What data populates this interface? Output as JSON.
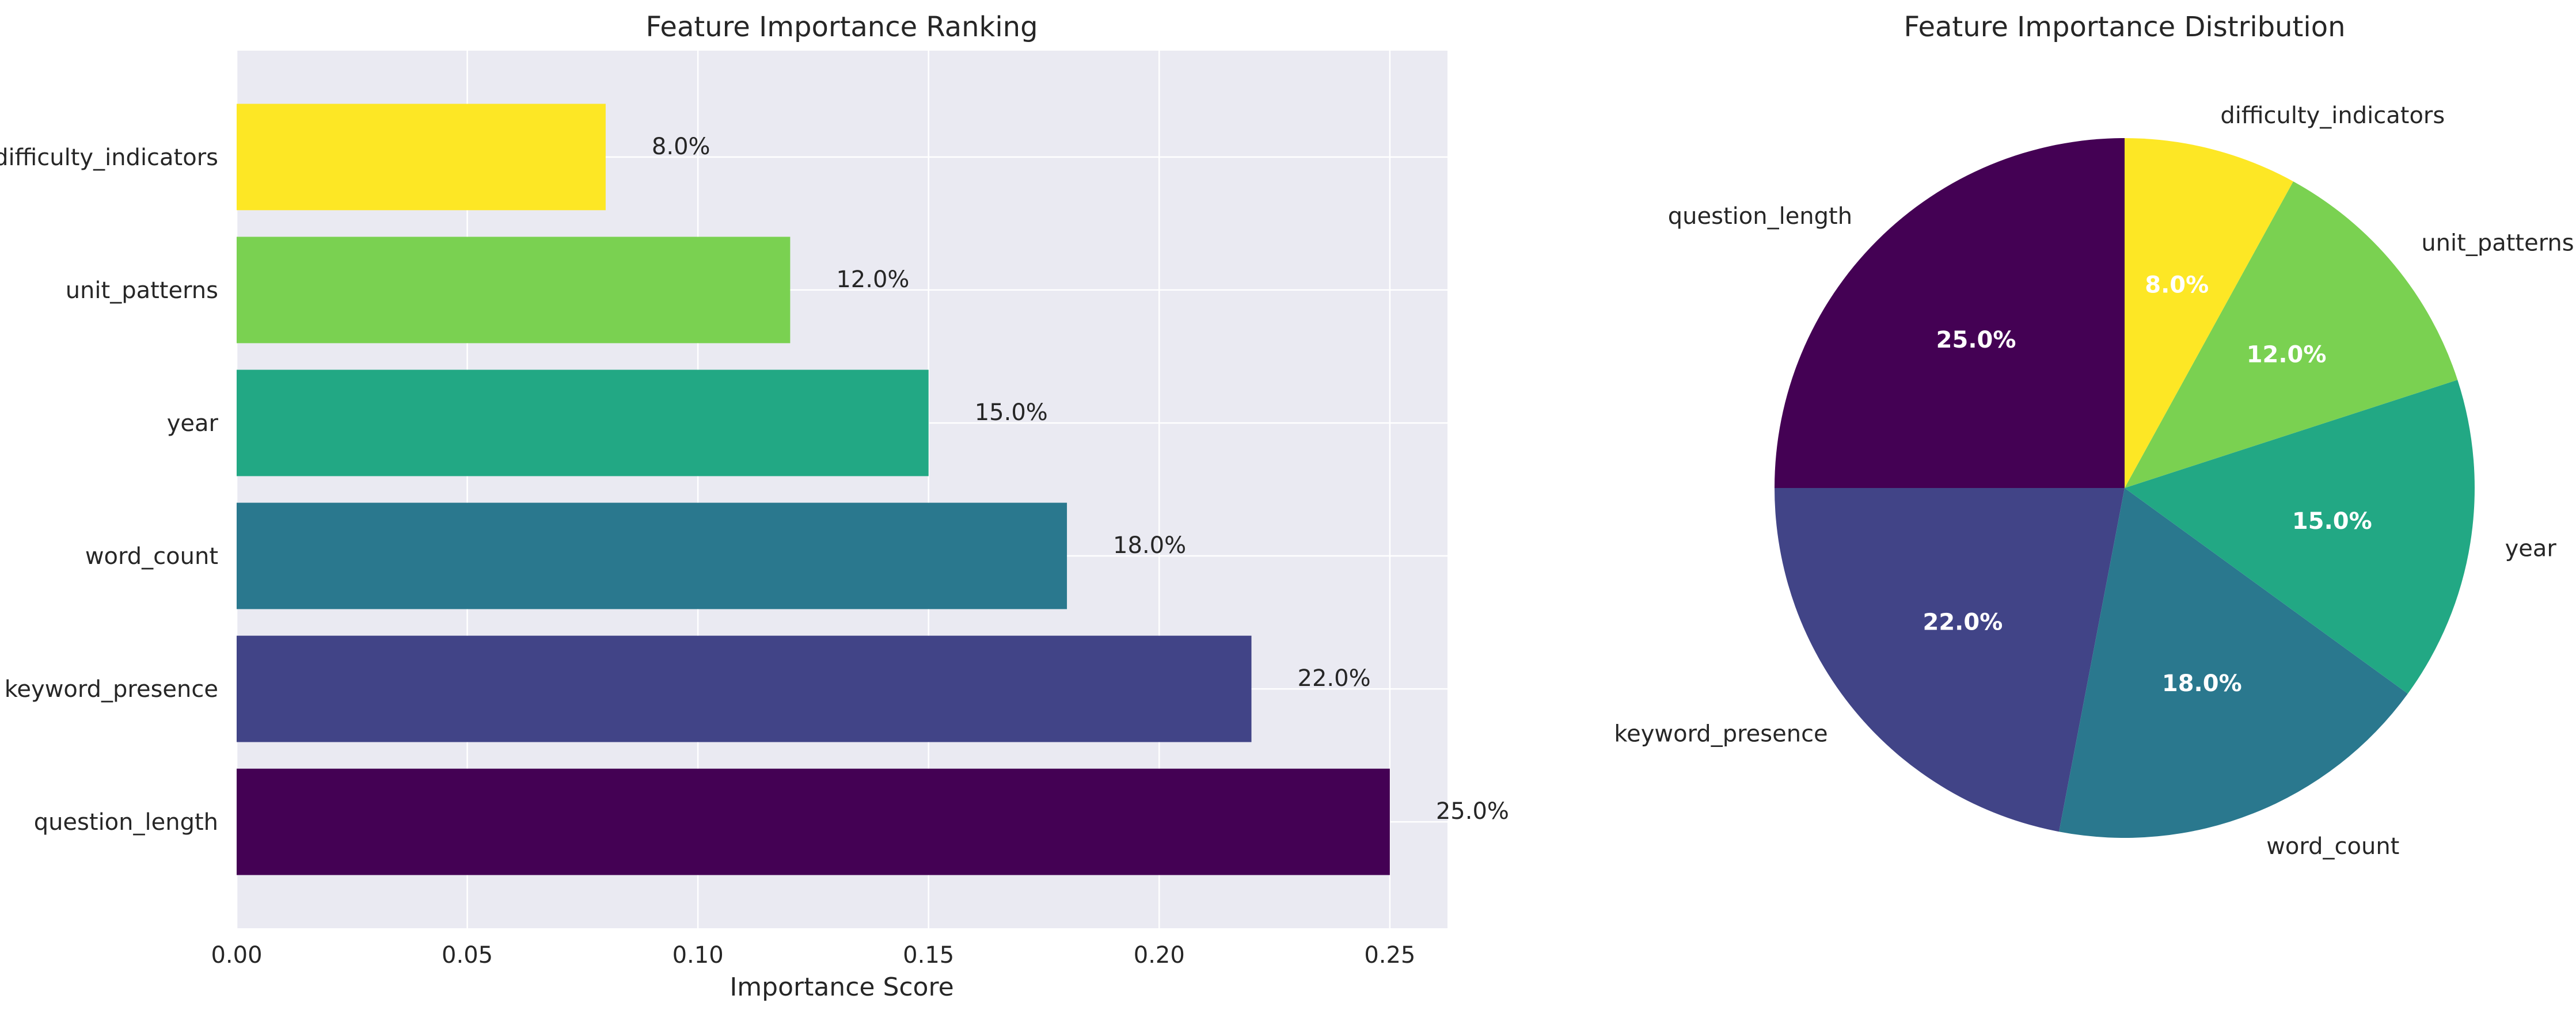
{
  "chart_data": [
    {
      "type": "bar",
      "orientation": "horizontal",
      "title": "Feature Importance Ranking",
      "xlabel": "Importance Score",
      "ylabel": "",
      "xlim": [
        0,
        0.2625
      ],
      "xticks": [
        "0.00",
        "0.05",
        "0.10",
        "0.15",
        "0.20",
        "0.25"
      ],
      "grid": true,
      "categories": [
        "question_length",
        "keyword_presence",
        "word_count",
        "year",
        "unit_patterns",
        "difficulty_indicators"
      ],
      "values": [
        0.25,
        0.22,
        0.18,
        0.15,
        0.12,
        0.08
      ],
      "data_labels": [
        "25.0%",
        "22.0%",
        "18.0%",
        "15.0%",
        "12.0%",
        "8.0%"
      ],
      "colors": [
        "#440154",
        "#414487",
        "#2a788e",
        "#22a884",
        "#7ad151",
        "#fde725"
      ]
    },
    {
      "type": "pie",
      "title": "Feature Importance Distribution",
      "start_angle": 90,
      "direction": "counterclockwise",
      "labels": [
        "question_length",
        "keyword_presence",
        "word_count",
        "year",
        "unit_patterns",
        "difficulty_indicators"
      ],
      "values": [
        25.0,
        22.0,
        18.0,
        15.0,
        12.0,
        8.0
      ],
      "pct_labels": [
        "25.0%",
        "22.0%",
        "18.0%",
        "15.0%",
        "12.0%",
        "8.0%"
      ],
      "colors": [
        "#440154",
        "#414487",
        "#2a788e",
        "#22a884",
        "#7ad151",
        "#fde725"
      ]
    }
  ]
}
